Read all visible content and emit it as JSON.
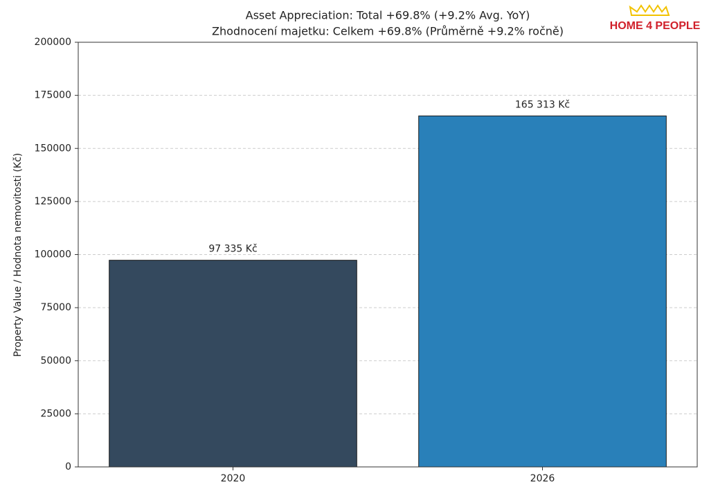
{
  "chart_data": {
    "type": "bar",
    "title": "Asset Appreciation: Total +69.8% (+9.2% Avg. YoY)",
    "subtitle": "Zhodnocení majetku: Celkem +69.8% (Průměrně +9.2% ročně)",
    "y_label": "Property Value / Hodnota nemovitosti (Kč)",
    "logo": "HOME 4 PEOPLE",
    "categories": [
      "2020",
      "2026"
    ],
    "values": [
      97335,
      165313
    ],
    "value_labels": [
      "97 335 Kč",
      "165 313 Kč"
    ],
    "colors": [
      "#34495e",
      "#2980b9"
    ],
    "ylim": [
      0,
      200000
    ],
    "yticks": [
      0,
      25000,
      50000,
      75000,
      100000,
      125000,
      150000,
      175000,
      200000
    ],
    "grid": true
  }
}
